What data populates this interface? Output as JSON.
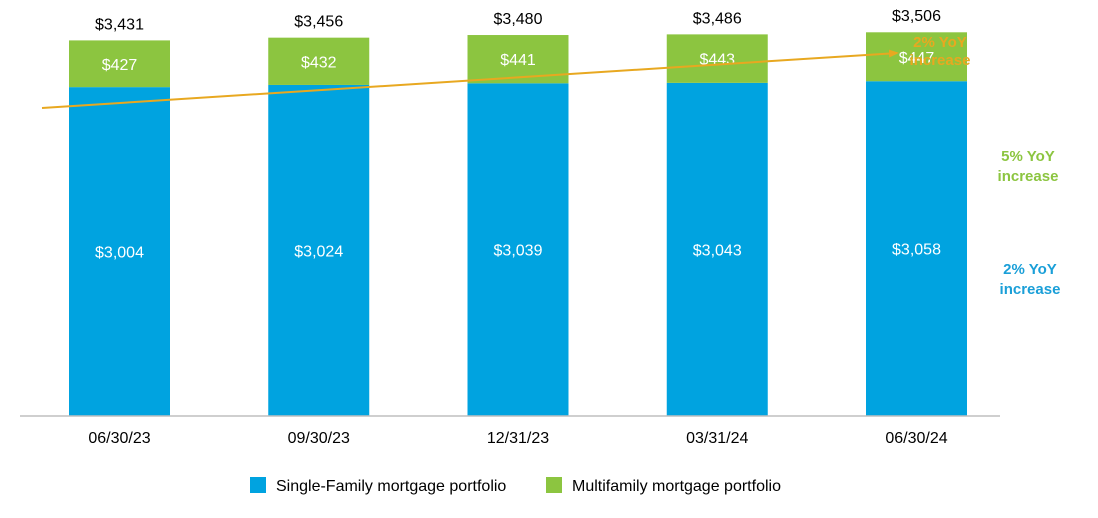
{
  "chart_data": {
    "type": "bar",
    "stacked": true,
    "categories": [
      "06/30/23",
      "09/30/23",
      "12/31/23",
      "03/31/24",
      "06/30/24"
    ],
    "series": [
      {
        "name": "Single-Family mortgage portfolio",
        "color": "#00a3e0",
        "values": [
          3004,
          3024,
          3039,
          3043,
          3058
        ],
        "labels": [
          "$3,004",
          "$3,024",
          "$3,039",
          "$3,043",
          "$3,058"
        ]
      },
      {
        "name": "Multifamily mortgage portfolio",
        "color": "#8cc540",
        "values": [
          427,
          432,
          441,
          443,
          447
        ],
        "labels": [
          "$427",
          "$432",
          "$441",
          "$443",
          "$447"
        ]
      }
    ],
    "totals": [
      3431,
      3456,
      3480,
      3486,
      3506
    ],
    "total_labels": [
      "$3,431",
      "$3,456",
      "$3,480",
      "$3,486",
      "$3,506"
    ],
    "ylim": [
      0,
      3800
    ],
    "grid": false,
    "legend_position": "bottom-center",
    "annotations": {
      "total": {
        "line1": "2% YoY",
        "line2": "increase",
        "color": "#e8a820"
      },
      "multifamily": {
        "line1": "5% YoY",
        "line2": "increase",
        "color": "#8cc540"
      },
      "single_family": {
        "line1": "2% YoY",
        "line2": "increase",
        "color": "#1a9fd8"
      }
    }
  }
}
